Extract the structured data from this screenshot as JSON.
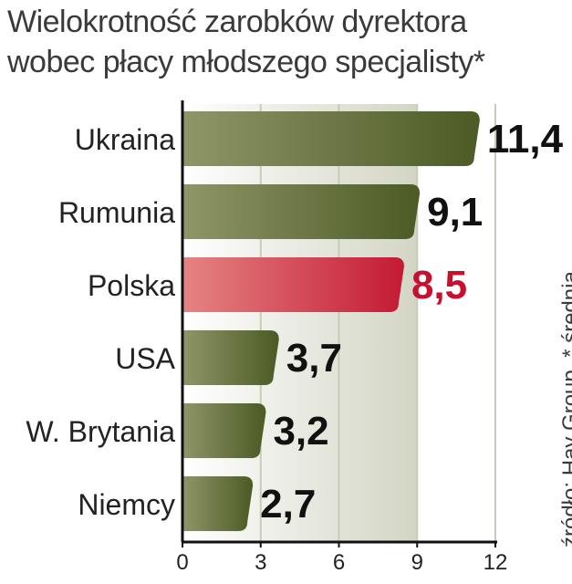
{
  "title_lines": [
    "Wielokrotność zarobków dyrektora",
    "wobec płacy młodszego specjalisty*"
  ],
  "source_note": "źródło: Hay Group, * średnia",
  "colors": {
    "bar_dark": "#4c5a25",
    "bar_light": "#8f9668",
    "highlight_dark": "#c41a34",
    "highlight_light": "#e58483",
    "highlight_text": "#c8102e",
    "value_text": "#111111",
    "label_text": "#222222",
    "shade_light": "#ffffff",
    "shade_dark": "#d3d5c4"
  },
  "chart_data": {
    "type": "bar",
    "orientation": "horizontal",
    "title": "Wielokrotność zarobków dyrektora wobec płacy młodszego specjalisty*",
    "categories": [
      "Ukraina",
      "Rumunia",
      "Polska",
      "USA",
      "W. Brytania",
      "Niemcy"
    ],
    "values": [
      11.4,
      9.1,
      8.5,
      3.7,
      3.2,
      2.7
    ],
    "value_labels": [
      "11,4",
      "9,1",
      "8,5",
      "3,7",
      "3,2",
      "2,7"
    ],
    "highlight": "Polska",
    "xlim": [
      0,
      12
    ],
    "xticks": [
      "0",
      "3",
      "6",
      "9",
      "12"
    ],
    "xlabel": "",
    "ylabel": "",
    "grid": true
  }
}
